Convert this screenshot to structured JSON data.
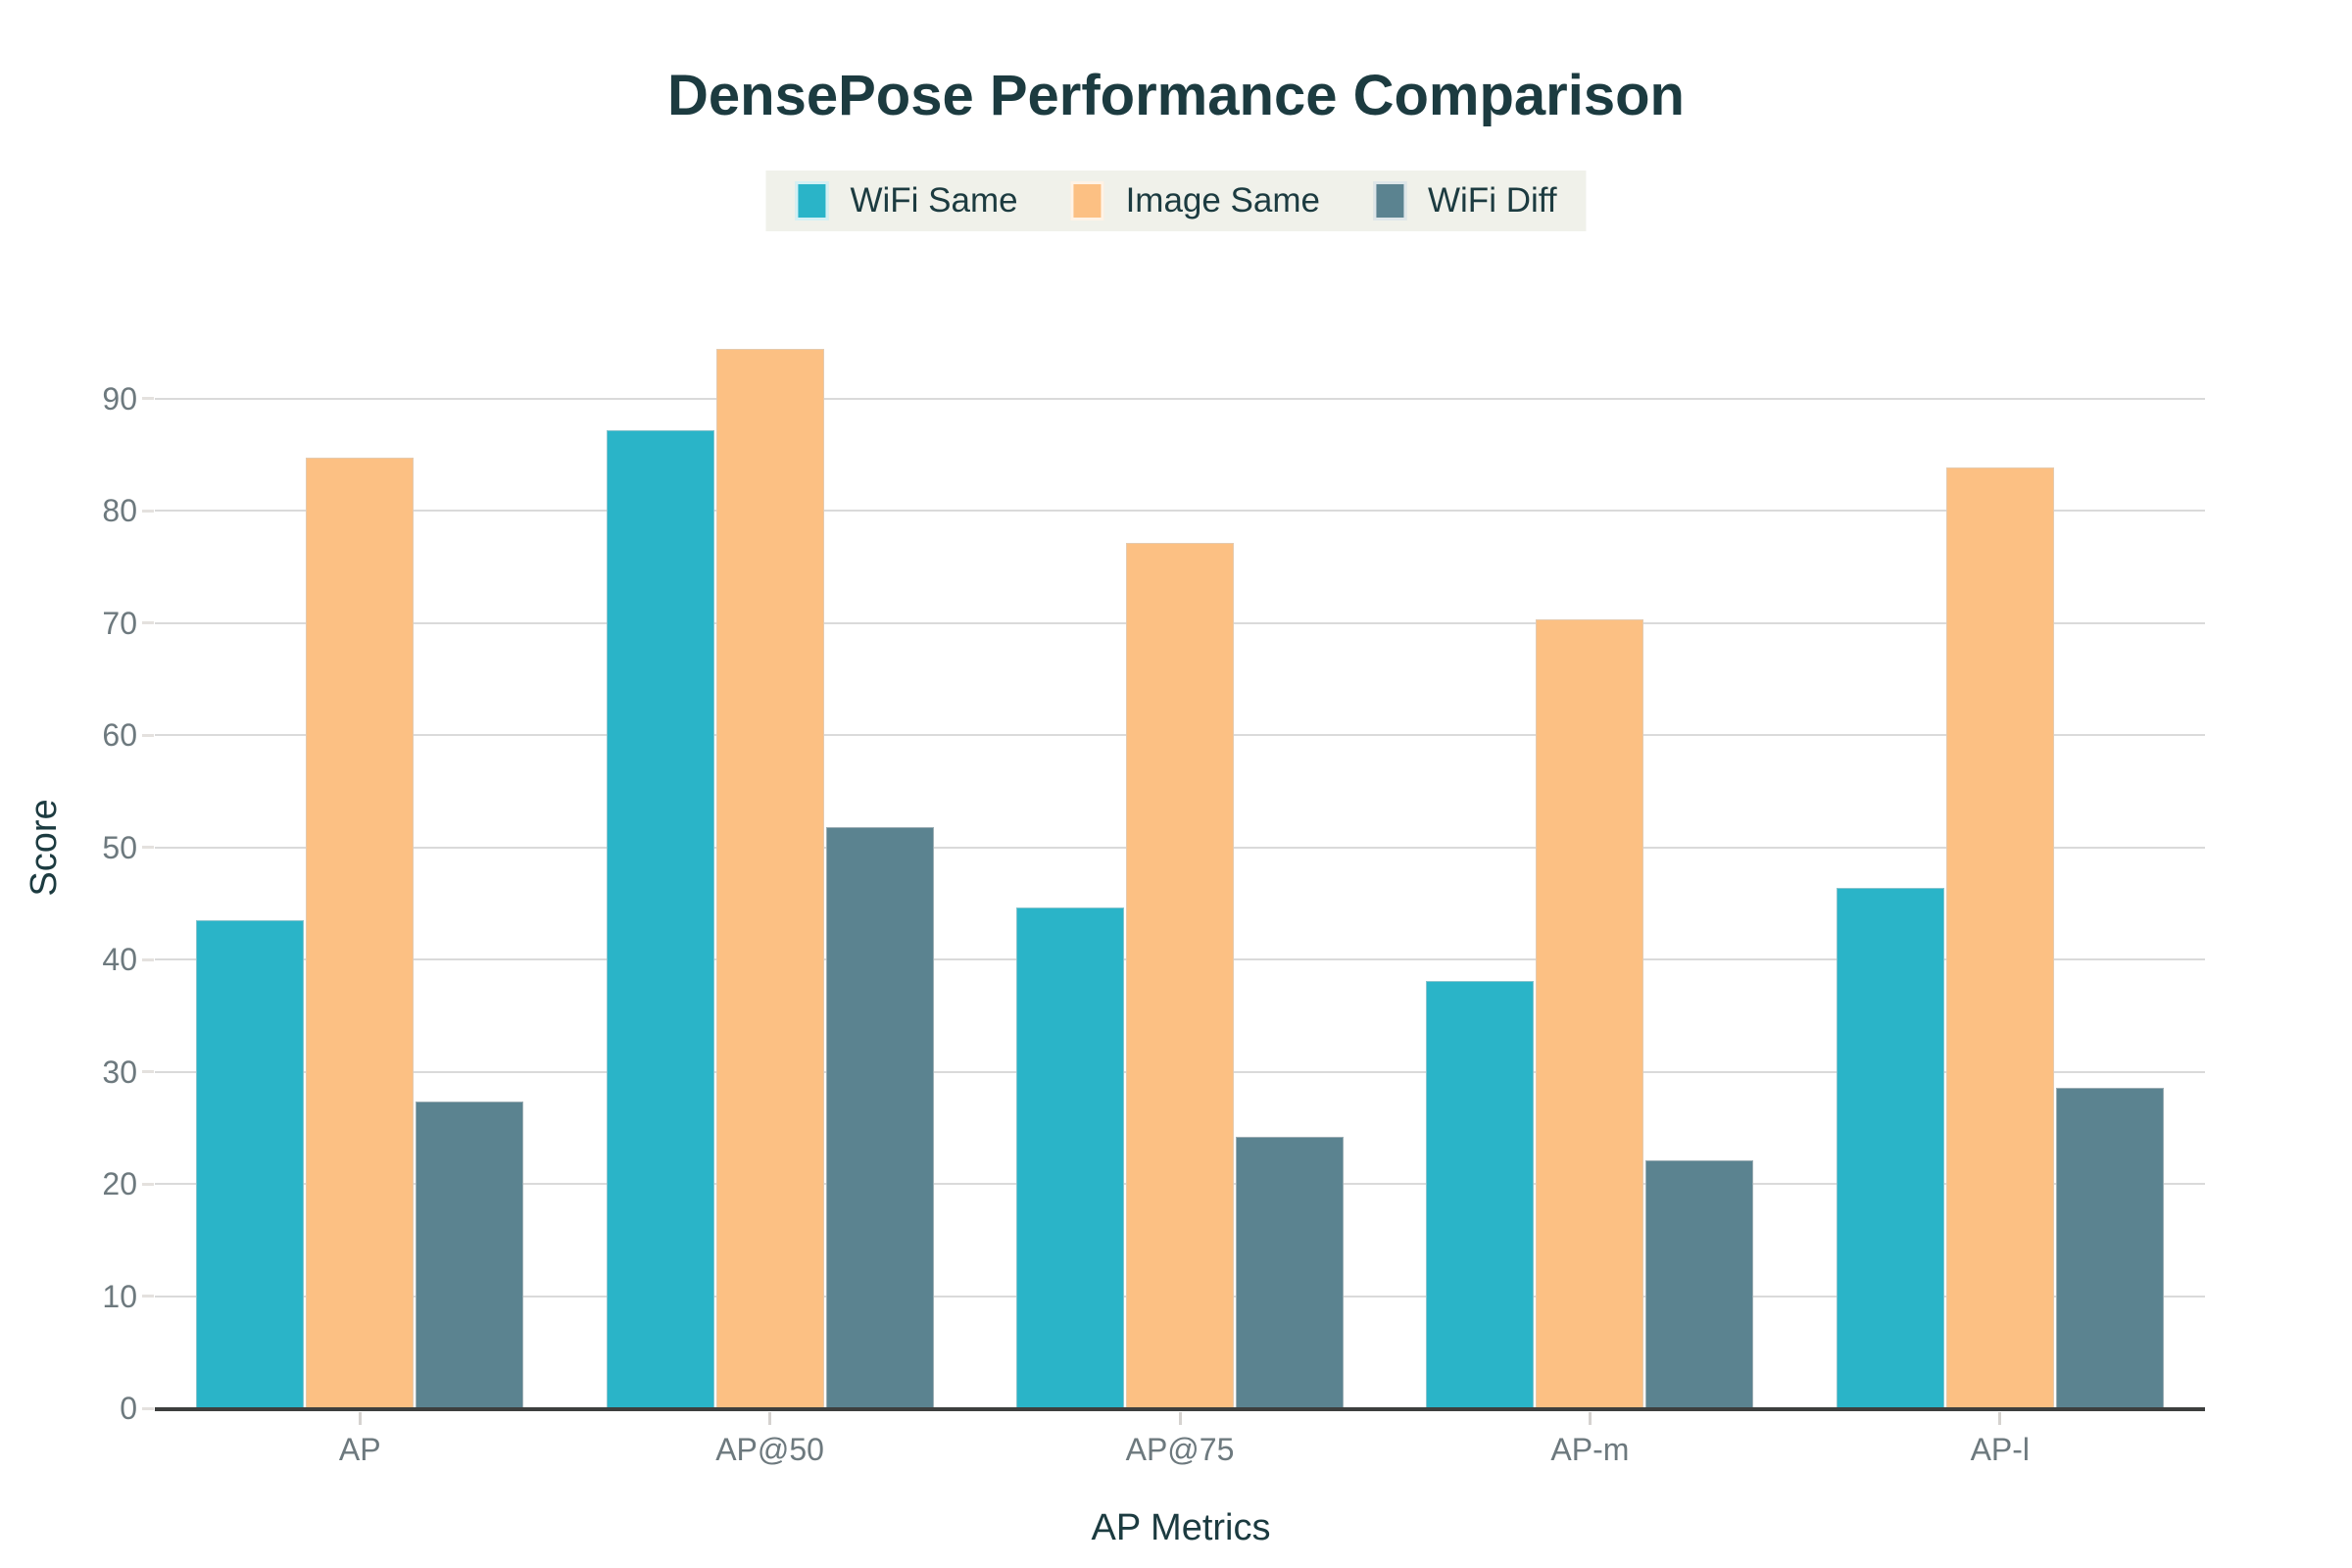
{
  "title": "DensePose Performance Comparison",
  "chart_data": {
    "type": "bar",
    "title": "DensePose Performance Comparison",
    "xlabel": "AP Metrics",
    "ylabel": "Score",
    "categories": [
      "AP",
      "AP@50",
      "AP@75",
      "AP-m",
      "AP-l"
    ],
    "series": [
      {
        "name": "WiFi Same",
        "color": "#2ab4c8",
        "values": [
          43.5,
          87.2,
          44.6,
          38.1,
          46.4
        ]
      },
      {
        "name": "Image Same",
        "color": "#fcc083",
        "values": [
          84.7,
          94.4,
          77.1,
          70.3,
          83.8
        ]
      },
      {
        "name": "WiFi Diff",
        "color": "#5b8390",
        "values": [
          27.3,
          51.8,
          24.2,
          22.1,
          28.6
        ]
      }
    ],
    "ylim": [
      0,
      95
    ],
    "yticks": [
      0,
      10,
      20,
      30,
      40,
      50,
      60,
      70,
      80,
      90
    ],
    "grid": true,
    "legend_position": "top-center"
  },
  "legend": {
    "items": [
      {
        "label": "WiFi Same",
        "color": "#2ab4c8"
      },
      {
        "label": "Image Same",
        "color": "#fcc083"
      },
      {
        "label": "WiFi Diff",
        "color": "#5b8390"
      }
    ],
    "background": "#f0f1ea"
  },
  "colors": {
    "title_text": "#1c3b40",
    "axis_label_text": "#1c3b40",
    "tick_label_text": "#6d797e",
    "gridline": "#dadada",
    "axis_line": "#3d3f3e",
    "legend_background": "#f0f1ea",
    "page_background": "#ffffff"
  }
}
